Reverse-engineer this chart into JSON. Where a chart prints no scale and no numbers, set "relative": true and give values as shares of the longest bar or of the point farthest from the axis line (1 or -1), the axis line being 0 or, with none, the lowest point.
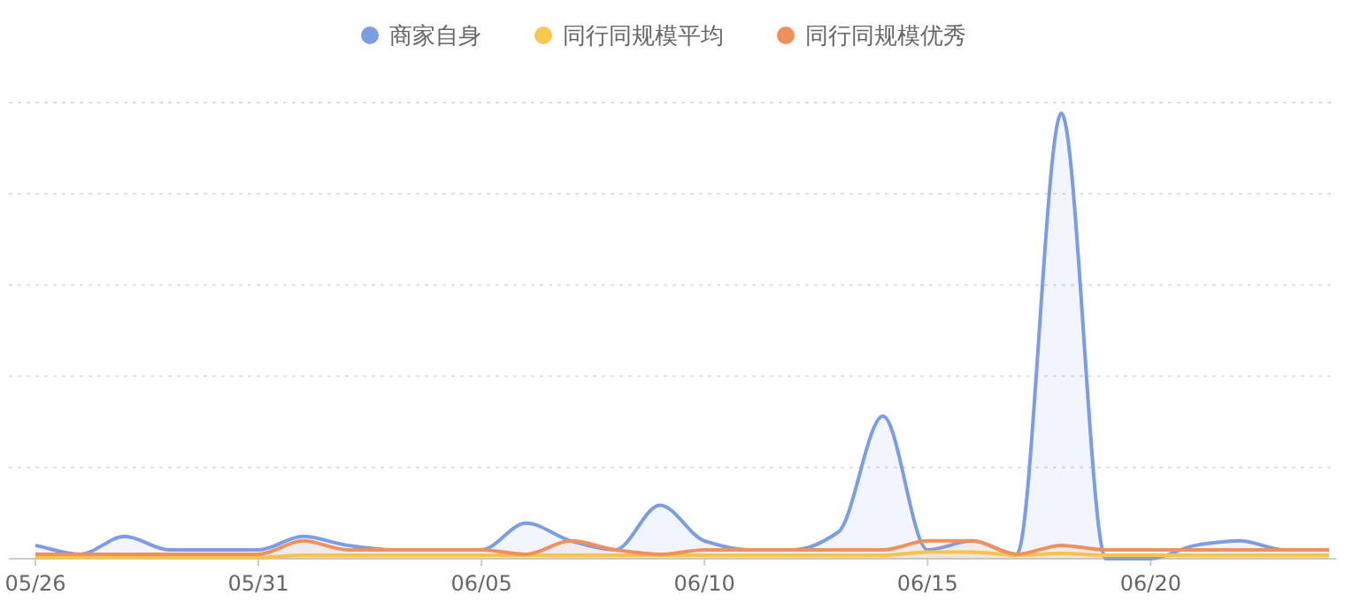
{
  "chart_data": {
    "type": "area",
    "relative": true,
    "grid": "y",
    "legend": "top",
    "marker": "none",
    "categories": [
      "05/26",
      null,
      null,
      null,
      null,
      "05/31",
      null,
      null,
      null,
      null,
      "06/05",
      null,
      null,
      null,
      null,
      "06/10",
      null,
      null,
      null,
      null,
      "06/15",
      null,
      null,
      null,
      null,
      "06/20",
      null,
      null,
      null,
      null
    ],
    "series": [
      {
        "name": "商家自身",
        "color": "#7b9de6",
        "values": [
          0.03,
          0.01,
          0.05,
          0.02,
          0.02,
          0.02,
          0.05,
          0.03,
          0.02,
          0.02,
          0.02,
          0.08,
          0.04,
          0.02,
          0.12,
          0.04,
          0.02,
          0.02,
          0.06,
          0.32,
          0.02,
          0.04,
          0.01,
          1,
          0,
          0,
          0.03,
          0.04,
          0.02,
          0.02
        ]
      },
      {
        "name": "同行同规模平均",
        "color": "#f8c94f",
        "values": [
          0.003,
          0.003,
          0.003,
          0.003,
          0.003,
          0.003,
          0.008,
          0.008,
          0.008,
          0.008,
          0.008,
          0.008,
          0.008,
          0.008,
          0.008,
          0.008,
          0.008,
          0.008,
          0.008,
          0.008,
          0.015,
          0.015,
          0.008,
          0.012,
          0.008,
          0.008,
          0.008,
          0.008,
          0.008,
          0.008
        ]
      },
      {
        "name": "同行同规模优秀",
        "color": "#f0905a",
        "values": [
          0.01,
          0.01,
          0.01,
          0.01,
          0.01,
          0.01,
          0.04,
          0.02,
          0.02,
          0.02,
          0.02,
          0.01,
          0.04,
          0.02,
          0.01,
          0.02,
          0.02,
          0.02,
          0.02,
          0.02,
          0.04,
          0.04,
          0.01,
          0.03,
          0.02,
          0.02,
          0.02,
          0.02,
          0.02,
          0.02
        ]
      }
    ]
  }
}
